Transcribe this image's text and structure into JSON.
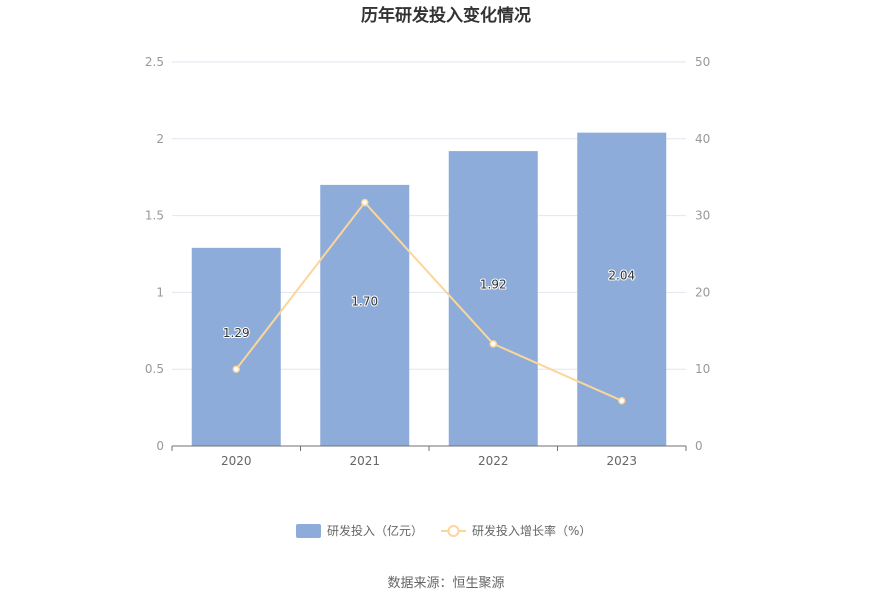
{
  "chart_data": {
    "type": "bar",
    "title": "历年研发投入变化情况",
    "categories": [
      "2020",
      "2021",
      "2022",
      "2023"
    ],
    "series": [
      {
        "name": "研发投入（亿元）",
        "type": "bar",
        "axis": "left",
        "values": [
          1.29,
          1.7,
          1.92,
          2.04
        ],
        "data_labels": [
          "1.29",
          "1.70",
          "1.92",
          "2.04"
        ],
        "color": "#8eacd9"
      },
      {
        "name": "研发投入增长率（%）",
        "type": "line",
        "axis": "right",
        "values": [
          10.0,
          31.7,
          13.3,
          5.9
        ],
        "color": "#fad69a"
      }
    ],
    "y_left": {
      "ylim": [
        0,
        2.5
      ],
      "ticks": [
        "0",
        "0.5",
        "1",
        "1.5",
        "2",
        "2.5"
      ]
    },
    "y_right": {
      "ylim": [
        0,
        50
      ],
      "ticks": [
        "0",
        "10",
        "20",
        "30",
        "40",
        "50"
      ]
    },
    "grid": true,
    "legend_position": "bottom-center",
    "source": "数据来源：恒生聚源"
  }
}
